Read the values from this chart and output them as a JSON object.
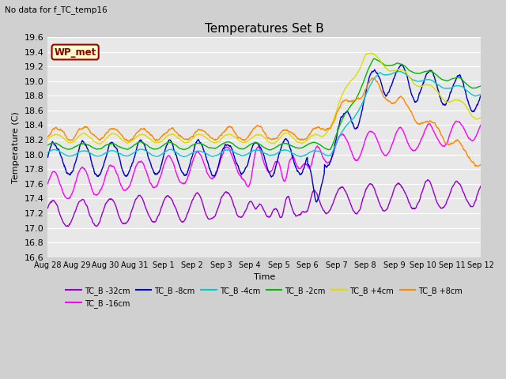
{
  "title": "Temperatures Set B",
  "subtitle": "No data for f_TC_temp16",
  "xlabel": "Time",
  "ylabel": "Temperature (C)",
  "ylim": [
    16.6,
    19.6
  ],
  "wp_met_label": "WP_met",
  "wp_met_bg": "#ffffcc",
  "wp_met_border": "#990000",
  "series_colors": {
    "TC_B -32cm": "#9900cc",
    "TC_B -16cm": "#ff00ff",
    "TC_B -8cm": "#0000cc",
    "TC_B -4cm": "#00cccc",
    "TC_B -2cm": "#00bb00",
    "TC_B +4cm": "#dddd00",
    "TC_B +8cm": "#ff8800"
  },
  "xtick_labels": [
    "Aug 28",
    "Aug 29",
    "Aug 30",
    "Aug 31",
    "Sep 1",
    "Sep 2",
    "Sep 3",
    "Sep 4",
    "Sep 5",
    "Sep 6",
    "Sep 7",
    "Sep 8",
    "Sep 9",
    "Sep 10",
    "Sep 11",
    "Sep 12"
  ],
  "ytick_labels": [
    "16.6",
    "16.8",
    "17.0",
    "17.2",
    "17.4",
    "17.6",
    "17.8",
    "18.0",
    "18.2",
    "18.4",
    "18.6",
    "18.8",
    "19.0",
    "19.2",
    "19.4",
    "19.6"
  ],
  "ytick_vals": [
    16.6,
    16.8,
    17.0,
    17.2,
    17.4,
    17.6,
    17.8,
    18.0,
    18.2,
    18.4,
    18.6,
    18.8,
    19.0,
    19.2,
    19.4,
    19.6
  ],
  "n_points": 1440,
  "days": 15,
  "figsize": [
    6.4,
    4.8
  ],
  "dpi": 100
}
